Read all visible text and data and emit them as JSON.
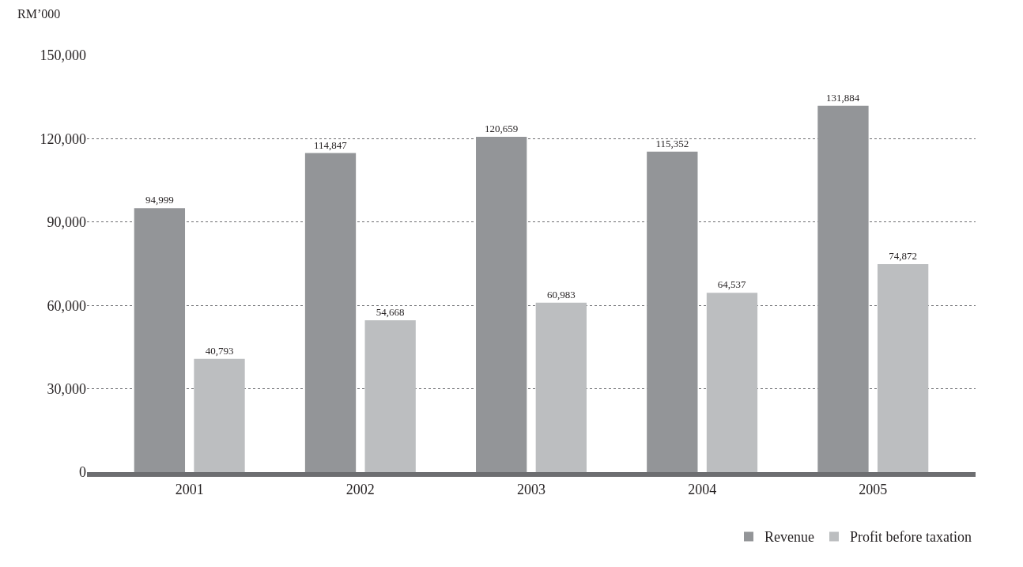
{
  "chart_data": {
    "type": "bar",
    "ylabel": "RM’000",
    "categories": [
      "2001",
      "2002",
      "2003",
      "2004",
      "2005"
    ],
    "series": [
      {
        "name": "Revenue",
        "color": "#939598",
        "values": [
          94999,
          114847,
          120659,
          115352,
          131884
        ],
        "value_labels": [
          "94,999",
          "114,847",
          "120,659",
          "115,352",
          "131,884"
        ]
      },
      {
        "name": "Profit before taxation",
        "color": "#bcbec0",
        "values": [
          40793,
          54668,
          60983,
          64537,
          74872
        ],
        "value_labels": [
          "40,793",
          "54,668",
          "60,983",
          "64,537",
          "74,872"
        ]
      }
    ],
    "ylim": [
      0,
      150000
    ],
    "yticks": [
      {
        "value": 0,
        "label": "0"
      },
      {
        "value": 30000,
        "label": "30,000"
      },
      {
        "value": 60000,
        "label": "60,000"
      },
      {
        "value": 90000,
        "label": "90,000"
      },
      {
        "value": 120000,
        "label": "120,000"
      },
      {
        "value": 150000,
        "label": "150,000"
      }
    ],
    "grid": "y",
    "legend": "bottom right"
  }
}
